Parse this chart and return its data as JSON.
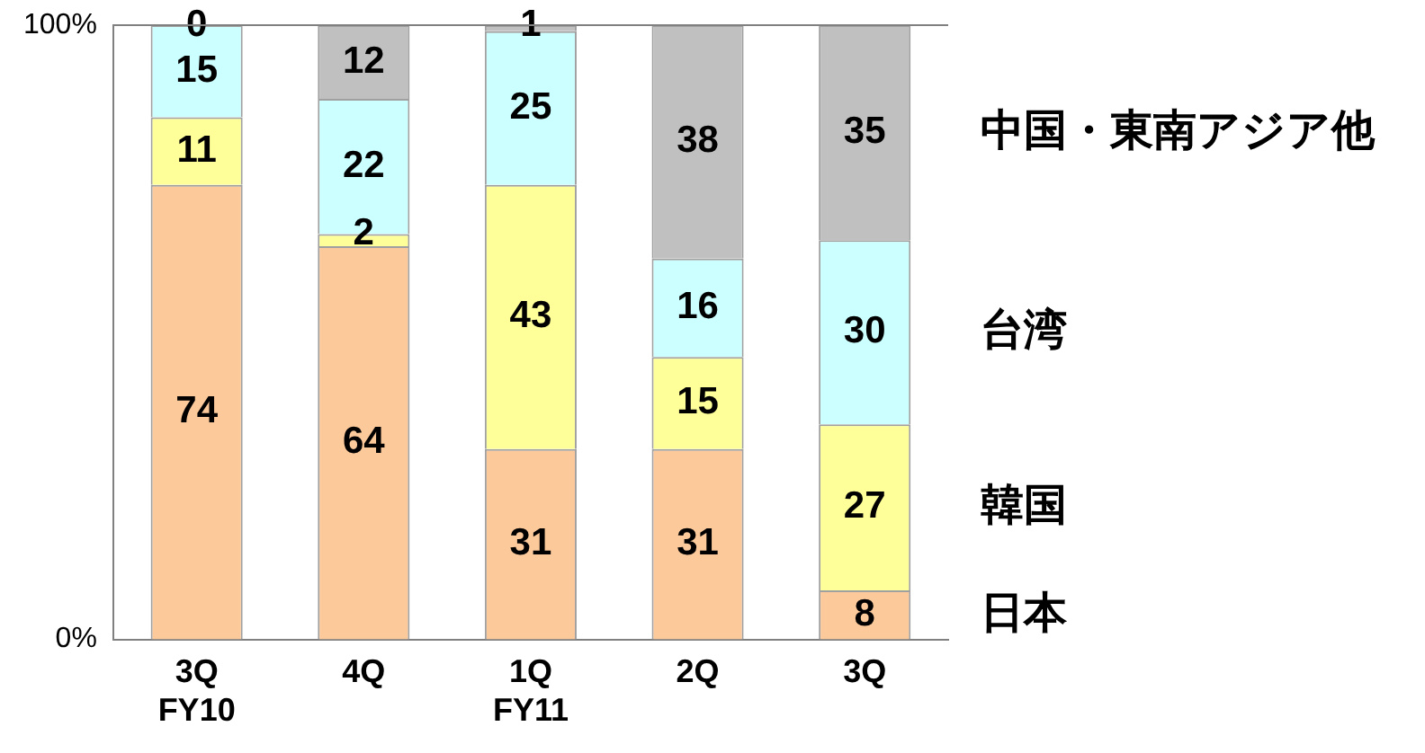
{
  "chart_data": {
    "type": "bar",
    "stacked": true,
    "categories": [
      "3Q\nFY10",
      "4Q",
      "1Q\nFY11",
      "2Q",
      "3Q"
    ],
    "series": [
      {
        "name": "日本",
        "color": "#fcc99b",
        "values": [
          74,
          64,
          31,
          31,
          8
        ]
      },
      {
        "name": "韓国",
        "color": "#ffff99",
        "values": [
          11,
          2,
          43,
          15,
          27
        ]
      },
      {
        "name": "台湾",
        "color": "#ccffff",
        "values": [
          15,
          22,
          25,
          16,
          30
        ]
      },
      {
        "name": "中国・東南アジア他",
        "color": "#c0c0c0",
        "values": [
          0,
          12,
          1,
          38,
          35
        ]
      }
    ],
    "ylim": [
      0,
      100
    ],
    "yticks": [
      {
        "value": 0,
        "label": "0%"
      },
      {
        "value": 100,
        "label": "100%"
      }
    ],
    "ref_lines": [
      {
        "axis": "y",
        "value": 100,
        "color": "#808080"
      }
    ],
    "legend": false,
    "data_labels": true
  }
}
